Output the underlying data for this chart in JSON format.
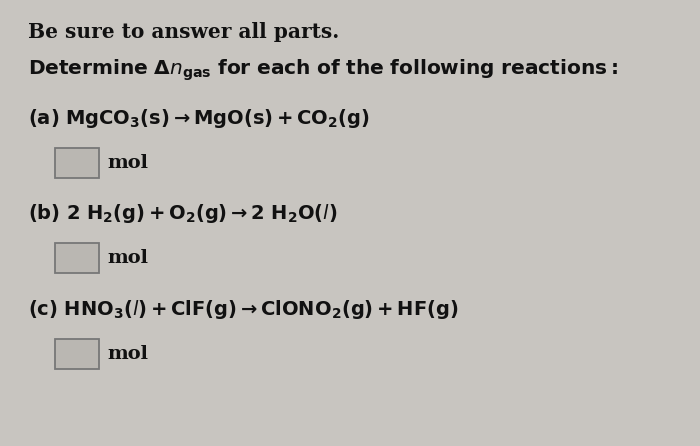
{
  "background_color": "#c8c5c0",
  "text_color": "#111111",
  "fig_width": 7.0,
  "fig_height": 4.46,
  "header1": "Be sure to answer all parts.",
  "header2": "Determine $\\mathbf{\\Delta}\\mathbf{n}_{\\mathbf{gas}}$ for each of the following reactions:",
  "rxn_a": "(a) MgCO$_{3}$(s) $\\rightarrow$ MgO(s) + CO$_{2}$(g)",
  "rxn_b": "(b) 2 H$_{2}$(g) + O$_{2}$(g) $\\rightarrow$ 2 H$_{2}$O($\\it{l}$)",
  "rxn_c": "(c) HNO$_{3}$($\\it{l}$) + ClF(g) $\\rightarrow$ ClONO$_{2}$(g) + HF(g)",
  "mol_text": "mol",
  "box_facecolor": "#bab7b2",
  "box_edgecolor": "#777777"
}
